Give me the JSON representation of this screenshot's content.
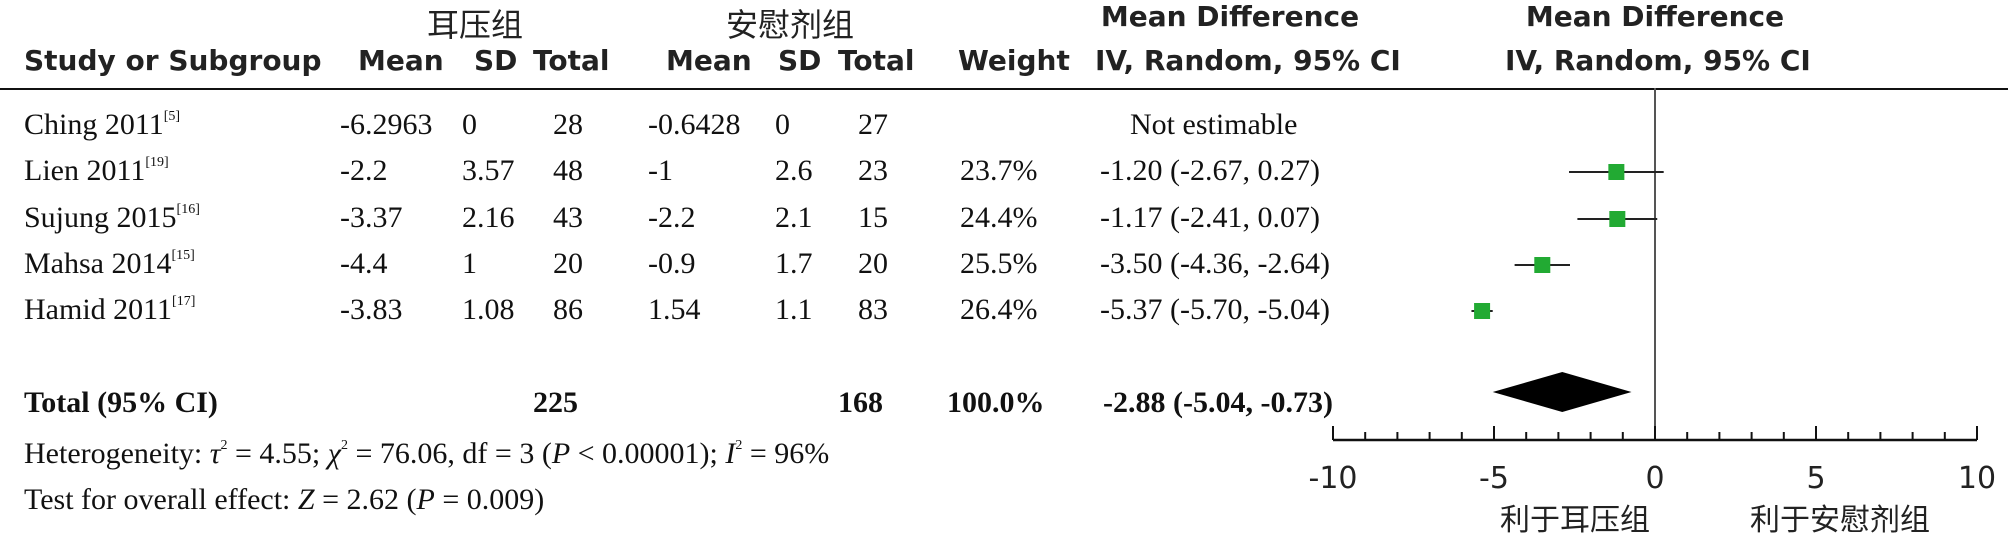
{
  "header": {
    "group1": "耳压组",
    "group2": "安慰剂组",
    "md_title": "Mean Difference",
    "plot_md_title": "Mean Difference",
    "study_col": "Study or Subgroup",
    "mean1": "Mean",
    "sd1": "SD",
    "total1": "Total",
    "mean2": "Mean",
    "sd2": "SD",
    "total2": "Total",
    "weight": "Weight",
    "method": "IV, Random, 95% CI",
    "plot_method": "IV, Random, 95% CI"
  },
  "studies": [
    {
      "name": "Ching 2011",
      "ref": "[5]",
      "mean1": "-6.2963",
      "sd1": "0",
      "n1": "28",
      "mean2": "-0.6428",
      "sd2": "0",
      "n2": "27",
      "weight": "",
      "ci": "Not estimable"
    },
    {
      "name": "Lien 2011",
      "ref": "[19]",
      "mean1": "-2.2",
      "sd1": "3.57",
      "n1": "48",
      "mean2": "-1",
      "sd2": "2.6",
      "n2": "23",
      "weight": "23.7%",
      "ci": "-1.20 (-2.67, 0.27)"
    },
    {
      "name": "Sujung 2015",
      "ref": "[16]",
      "mean1": "-3.37",
      "sd1": "2.16",
      "n1": "43",
      "mean2": "-2.2",
      "sd2": "2.1",
      "n2": "15",
      "weight": "24.4%",
      "ci": "-1.17 (-2.41, 0.07)"
    },
    {
      "name": "Mahsa 2014",
      "ref": "[15]",
      "mean1": "-4.4",
      "sd1": "1",
      "n1": "20",
      "mean2": "-0.9",
      "sd2": "1.7",
      "n2": "20",
      "weight": "25.5%",
      "ci": "-3.50 (-4.36, -2.64)"
    },
    {
      "name": "Hamid 2011",
      "ref": "[17]",
      "mean1": "-3.83",
      "sd1": "1.08",
      "n1": "86",
      "mean2": "1.54",
      "sd2": "1.1",
      "n2": "83",
      "weight": "26.4%",
      "ci": "-5.37 (-5.70, -5.04)"
    }
  ],
  "total": {
    "label": "Total (95% CI)",
    "n1": "225",
    "n2": "168",
    "weight": "100.0%",
    "ci": "-2.88 (-5.04, -0.73)"
  },
  "heterogeneity": {
    "prefix": "Heterogeneity: ",
    "tau": "τ",
    "tau_val": " = 4.55; ",
    "chi": "χ",
    "chi_val": " = 76.06, df = 3 (",
    "p": "P",
    "p_val": " < 0.00001); ",
    "i": "I",
    "i_val": " = 96%"
  },
  "overall": {
    "prefix": "Test for overall effect: ",
    "z": "Z",
    "z_val": " = 2.62 (",
    "p": "P",
    "p_val": " = 0.009)"
  },
  "axis": {
    "ticks": [
      "-10",
      "-5",
      "0",
      "5",
      "10"
    ],
    "left_label": "利于耳压组",
    "right_label": "利于安慰剂组"
  },
  "chart_data": {
    "type": "forest",
    "xlim": [
      -10,
      10
    ],
    "null_line": 0,
    "marker_color": "#22aa33",
    "diamond_color": "#000000",
    "points": [
      {
        "study": "Lien 2011",
        "md": -1.2,
        "lo": -2.67,
        "hi": 0.27,
        "weight": 23.7
      },
      {
        "study": "Sujung 2015",
        "md": -1.17,
        "lo": -2.41,
        "hi": 0.07,
        "weight": 24.4
      },
      {
        "study": "Mahsa 2014",
        "md": -3.5,
        "lo": -4.36,
        "hi": -2.64,
        "weight": 25.5
      },
      {
        "study": "Hamid 2011",
        "md": -5.37,
        "lo": -5.7,
        "hi": -5.04,
        "weight": 26.4
      }
    ],
    "pooled": {
      "md": -2.88,
      "lo": -5.04,
      "hi": -0.73
    }
  }
}
